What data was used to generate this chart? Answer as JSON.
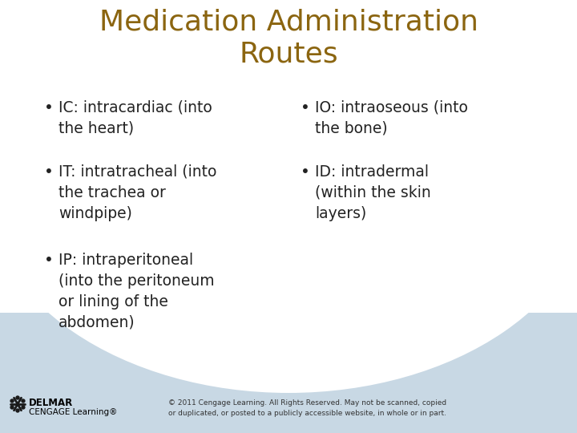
{
  "title_line1": "Medication Administration",
  "title_line2": "Routes",
  "title_color": "#8B6510",
  "background_top": "#FFFFFF",
  "background_bottom": "#C8D8E4",
  "left_bullets": [
    "IC: intracardiac (into\nthe heart)",
    "IT: intratracheal (into\nthe trachea or\nwindpipe)",
    "IP: intraperitoneal\n(into the peritoneum\nor lining of the\nabdomen)"
  ],
  "right_bullets": [
    "IO: intraoseous (into\nthe bone)",
    "ID: intradermal\n(within the skin\nlayers)"
  ],
  "bullet_color": "#222222",
  "text_color": "#222222",
  "text_fontsize": 13.5,
  "title_fontsize": 26,
  "footer_text_line1": "© 2011 Cengage Learning. All Rights Reserved. May not be scanned, copied",
  "footer_text_line2": "or duplicated, or posted to a publicly accessible website, in whole or in part.",
  "footer_brand1": "DELMAR",
  "footer_brand2": "CENGAGE Learning®",
  "footer_fontsize": 6.5,
  "logo_color": "#1a1a1a"
}
